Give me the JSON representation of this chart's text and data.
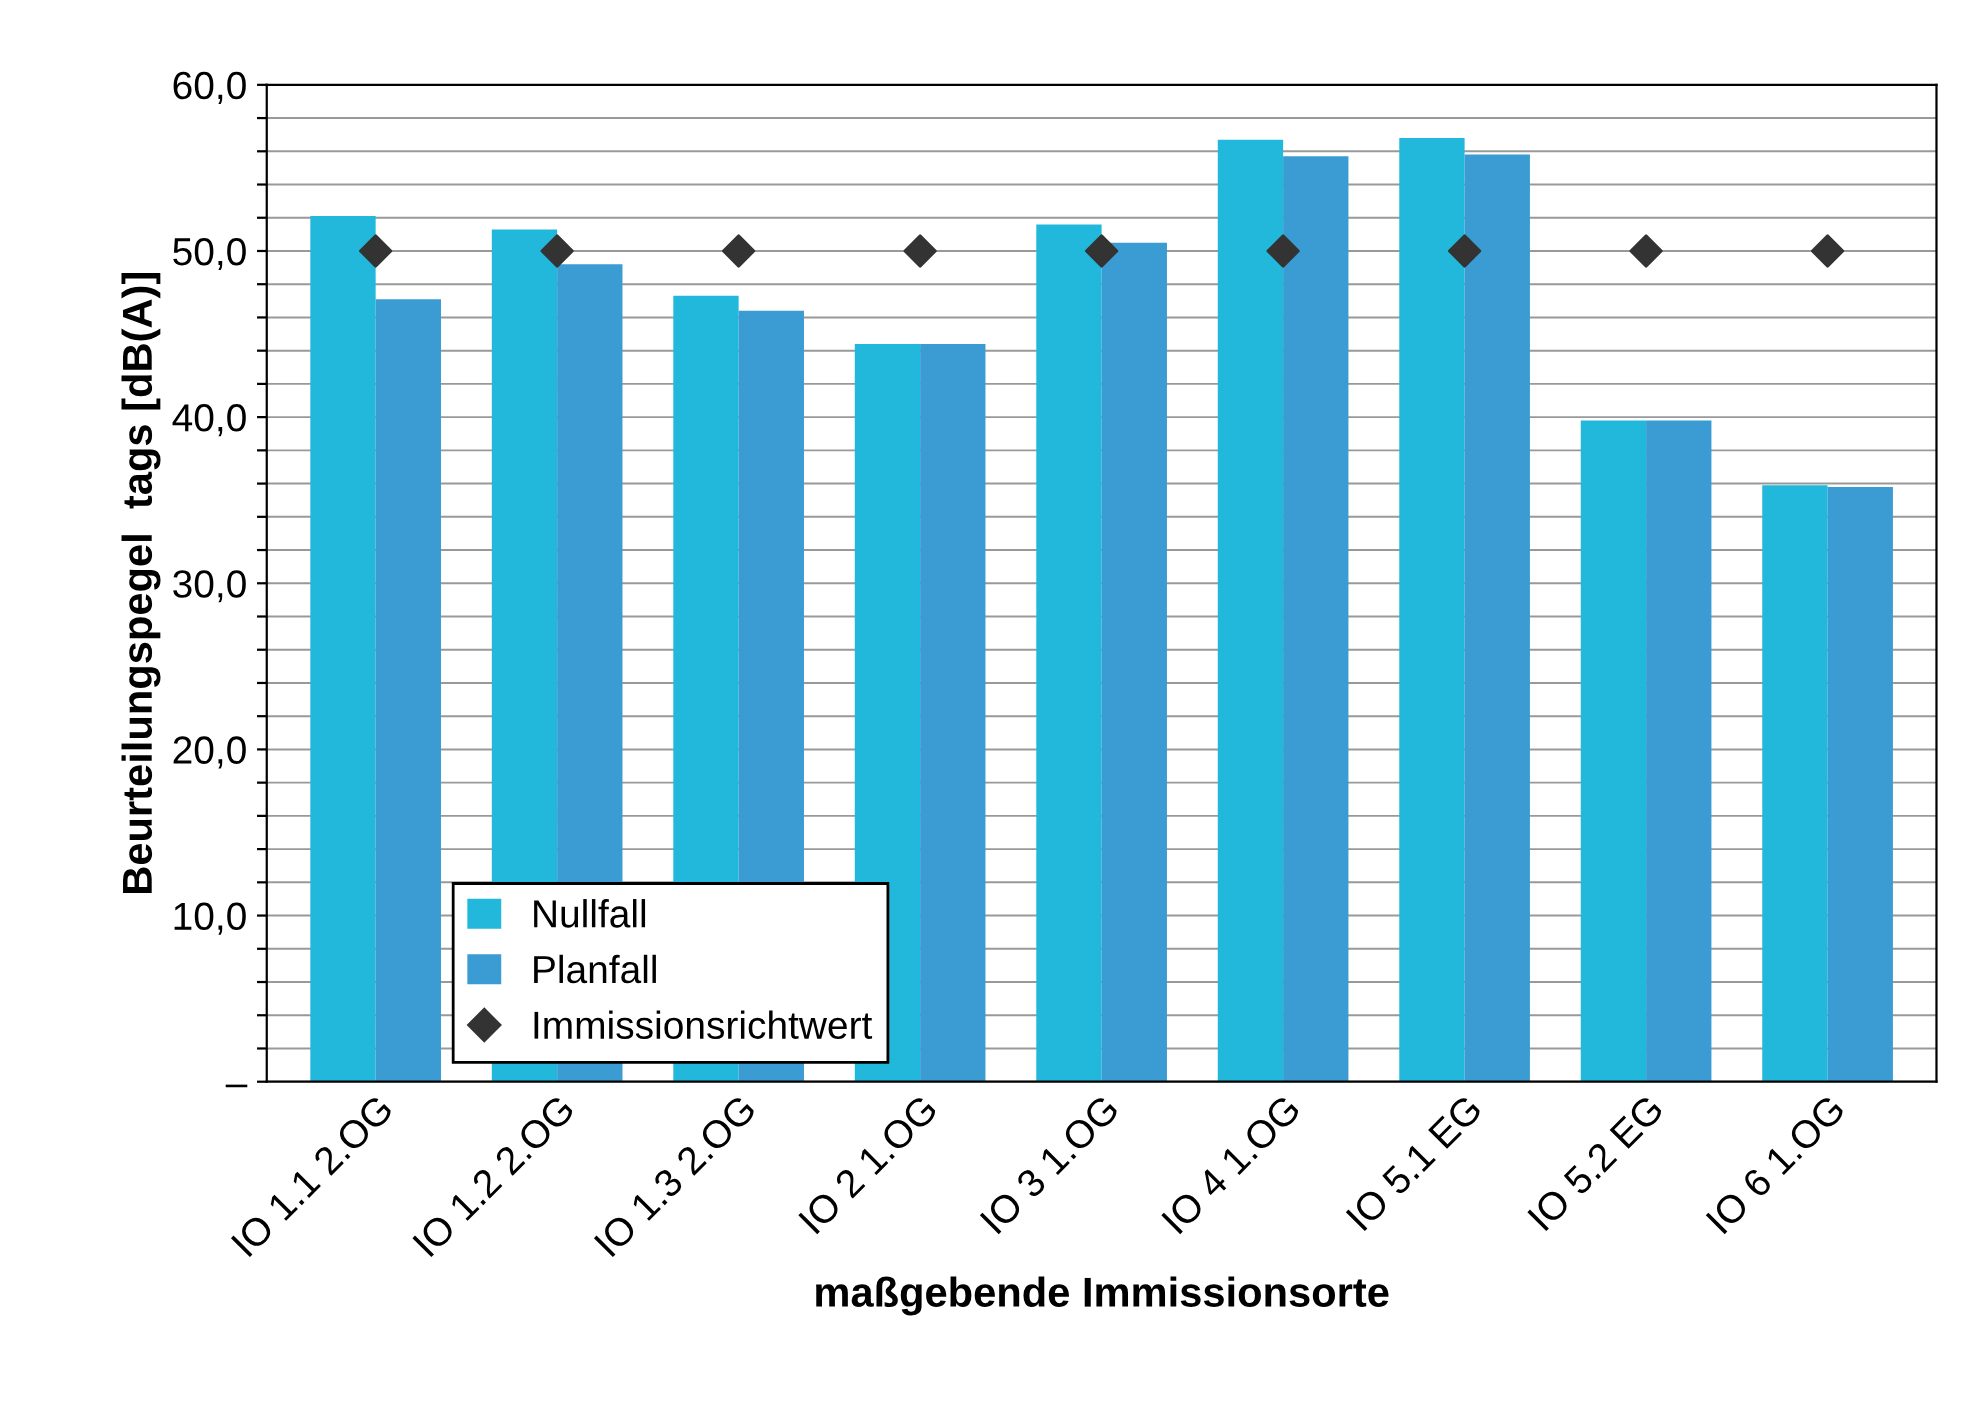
{
  "chart_data": {
    "type": "bar",
    "xlabel": "maßgebende Immissionsorte",
    "ylabel": "Beurteilungspegel  tags [dB(A)]",
    "categories": [
      "IO 1.1 2.OG",
      "IO 1.2 2.OG",
      "IO 1.3 2.OG",
      "IO 2 1.OG",
      "IO 3 1.OG",
      "IO 4 1.OG",
      "IO 5.1 EG",
      "IO 5.2 EG",
      "IO 6 1.OG"
    ],
    "series": [
      {
        "name": "Nullfall",
        "color": "#22b8dc",
        "values": [
          52.1,
          51.3,
          47.3,
          44.4,
          51.6,
          56.7,
          56.8,
          39.8,
          35.9
        ]
      },
      {
        "name": "Planfall",
        "color": "#3a9cd2",
        "values": [
          47.1,
          49.2,
          46.4,
          44.4,
          50.5,
          55.7,
          55.8,
          39.8,
          35.8
        ]
      },
      {
        "name": "Immissionsrichtwert",
        "type": "scatter",
        "marker": "diamond",
        "color": "#333333",
        "values": [
          50,
          50,
          50,
          50,
          50,
          50,
          50,
          50,
          50
        ]
      }
    ],
    "ylim": [
      0,
      60
    ],
    "yticks": [
      {
        "value": 0,
        "label": "–"
      },
      {
        "value": 2,
        "label": null
      },
      {
        "value": 4,
        "label": null
      },
      {
        "value": 6,
        "label": null
      },
      {
        "value": 8,
        "label": null
      },
      {
        "value": 10,
        "label": "10,0"
      },
      {
        "value": 12,
        "label": null
      },
      {
        "value": 14,
        "label": null
      },
      {
        "value": 16,
        "label": null
      },
      {
        "value": 18,
        "label": null
      },
      {
        "value": 20,
        "label": "20,0"
      },
      {
        "value": 22,
        "label": null
      },
      {
        "value": 24,
        "label": null
      },
      {
        "value": 26,
        "label": null
      },
      {
        "value": 28,
        "label": null
      },
      {
        "value": 30,
        "label": "30,0"
      },
      {
        "value": 32,
        "label": null
      },
      {
        "value": 34,
        "label": null
      },
      {
        "value": 36,
        "label": null
      },
      {
        "value": 38,
        "label": null
      },
      {
        "value": 40,
        "label": "40,0"
      },
      {
        "value": 42,
        "label": null
      },
      {
        "value": 44,
        "label": null
      },
      {
        "value": 46,
        "label": null
      },
      {
        "value": 48,
        "label": null
      },
      {
        "value": 50,
        "label": "50,0"
      },
      {
        "value": 52,
        "label": null
      },
      {
        "value": 54,
        "label": null
      },
      {
        "value": 56,
        "label": null
      },
      {
        "value": 58,
        "label": null
      },
      {
        "value": 60,
        "label": "60,0"
      }
    ],
    "grid": "y",
    "legend": "bottom left"
  }
}
